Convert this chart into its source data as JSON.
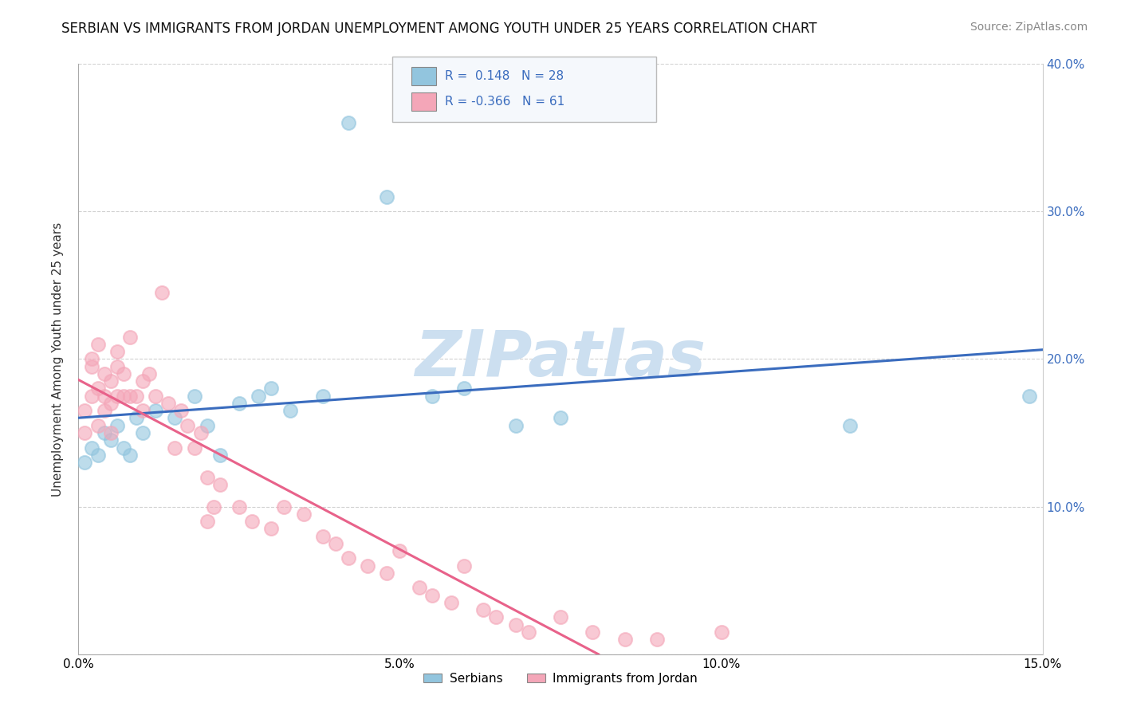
{
  "title": "SERBIAN VS IMMIGRANTS FROM JORDAN UNEMPLOYMENT AMONG YOUTH UNDER 25 YEARS CORRELATION CHART",
  "source": "Source: ZipAtlas.com",
  "ylabel": "Unemployment Among Youth under 25 years",
  "xlim": [
    0.0,
    0.15
  ],
  "ylim": [
    0.0,
    0.4
  ],
  "xticks": [
    0.0,
    0.05,
    0.1,
    0.15
  ],
  "xticklabels": [
    "0.0%",
    "5.0%",
    "10.0%",
    "15.0%"
  ],
  "yticks": [
    0.0,
    0.1,
    0.2,
    0.3,
    0.4
  ],
  "right_yticklabels": [
    "",
    "10.0%",
    "20.0%",
    "30.0%",
    "40.0%"
  ],
  "legend_labels": [
    "Serbians",
    "Immigrants from Jordan"
  ],
  "blue_color": "#92c5de",
  "pink_color": "#f4a6b8",
  "blue_line_color": "#3a6cbe",
  "pink_line_color": "#e8628a",
  "watermark": "ZIPatlas",
  "watermark_color": "#ccdff0",
  "background_color": "#ffffff",
  "grid_color": "#cccccc",
  "serbians_x": [
    0.001,
    0.002,
    0.003,
    0.004,
    0.005,
    0.006,
    0.007,
    0.008,
    0.009,
    0.01,
    0.012,
    0.015,
    0.018,
    0.02,
    0.022,
    0.025,
    0.028,
    0.03,
    0.033,
    0.038,
    0.042,
    0.048,
    0.055,
    0.06,
    0.068,
    0.075,
    0.12,
    0.148
  ],
  "serbians_y": [
    0.13,
    0.14,
    0.135,
    0.15,
    0.145,
    0.155,
    0.14,
    0.135,
    0.16,
    0.15,
    0.165,
    0.16,
    0.175,
    0.155,
    0.135,
    0.17,
    0.175,
    0.18,
    0.165,
    0.175,
    0.36,
    0.31,
    0.175,
    0.18,
    0.155,
    0.16,
    0.155,
    0.175
  ],
  "jordan_x": [
    0.001,
    0.001,
    0.002,
    0.002,
    0.002,
    0.003,
    0.003,
    0.003,
    0.004,
    0.004,
    0.004,
    0.005,
    0.005,
    0.005,
    0.006,
    0.006,
    0.006,
    0.007,
    0.007,
    0.008,
    0.008,
    0.009,
    0.01,
    0.01,
    0.011,
    0.012,
    0.013,
    0.014,
    0.015,
    0.016,
    0.017,
    0.018,
    0.019,
    0.02,
    0.02,
    0.021,
    0.022,
    0.025,
    0.027,
    0.03,
    0.032,
    0.035,
    0.038,
    0.04,
    0.042,
    0.045,
    0.048,
    0.05,
    0.053,
    0.055,
    0.058,
    0.06,
    0.063,
    0.065,
    0.068,
    0.07,
    0.075,
    0.08,
    0.085,
    0.09,
    0.1
  ],
  "jordan_y": [
    0.15,
    0.165,
    0.175,
    0.195,
    0.2,
    0.155,
    0.18,
    0.21,
    0.165,
    0.175,
    0.19,
    0.15,
    0.17,
    0.185,
    0.175,
    0.195,
    0.205,
    0.175,
    0.19,
    0.175,
    0.215,
    0.175,
    0.185,
    0.165,
    0.19,
    0.175,
    0.245,
    0.17,
    0.14,
    0.165,
    0.155,
    0.14,
    0.15,
    0.12,
    0.09,
    0.1,
    0.115,
    0.1,
    0.09,
    0.085,
    0.1,
    0.095,
    0.08,
    0.075,
    0.065,
    0.06,
    0.055,
    0.07,
    0.045,
    0.04,
    0.035,
    0.06,
    0.03,
    0.025,
    0.02,
    0.015,
    0.025,
    0.015,
    0.01,
    0.01,
    0.015
  ],
  "title_fontsize": 12,
  "axis_fontsize": 11,
  "tick_fontsize": 11,
  "source_fontsize": 10,
  "legend_r_blue": "R =  0.148",
  "legend_n_blue": "N = 28",
  "legend_r_pink": "R = -0.366",
  "legend_n_pink": "N = 61"
}
